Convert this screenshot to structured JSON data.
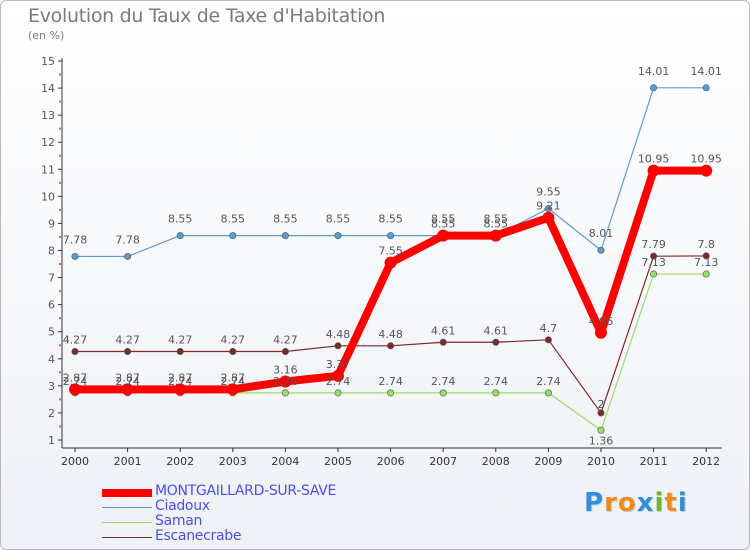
{
  "header": {
    "title": "Evolution du Taux de Taxe d'Habitation",
    "subtitle": "(en %)"
  },
  "logo": {
    "text": "Proxiti",
    "letters": [
      "P",
      "r",
      "o",
      "x",
      "i",
      "t",
      "i"
    ],
    "colors": [
      "#2f8fd8",
      "#f08a1c",
      "#f08a1c",
      "#2f8fd8",
      "#69b830",
      "#f08a1c",
      "#2f8fd8"
    ]
  },
  "chart_data": {
    "type": "line",
    "x": [
      "2000",
      "2001",
      "2002",
      "2003",
      "2004",
      "2005",
      "2006",
      "2007",
      "2008",
      "2009",
      "2010",
      "2011",
      "2012"
    ],
    "ylim": [
      1,
      15
    ],
    "yticks": [
      "1",
      "2",
      "3",
      "4",
      "5",
      "6",
      "7",
      "8",
      "9",
      "10",
      "11",
      "12",
      "13",
      "14",
      "15"
    ],
    "grid": false,
    "legend_position": "bottom-left",
    "series": [
      {
        "name": "MONTGAILLARD-SUR-SAVE",
        "color": "#ff0000",
        "values": [
          2.87,
          2.87,
          2.87,
          2.87,
          3.16,
          3.37,
          7.55,
          8.55,
          8.55,
          9.21,
          4.96,
          10.95,
          10.95
        ],
        "labels": [
          "2.87",
          "2.87",
          "2.87",
          "2.87",
          "3.16",
          "3.37",
          "7.55",
          "8.55",
          "8.55",
          "9.21",
          "4.96",
          "10.95",
          "10.95"
        ]
      },
      {
        "name": "Ciadoux",
        "color": "#5b9bd5",
        "values": [
          7.78,
          7.78,
          8.55,
          8.55,
          8.55,
          8.55,
          8.55,
          8.55,
          8.55,
          9.55,
          8.01,
          14.01,
          14.01
        ],
        "labels": [
          "7.78",
          "7.78",
          "8.55",
          "8.55",
          "8.55",
          "8.55",
          "8.55",
          "8.55",
          "8.55",
          "9.55",
          "8.01",
          "14.01",
          "14.01"
        ]
      },
      {
        "name": "Saman",
        "color": "#99dd66",
        "values": [
          2.74,
          2.74,
          2.74,
          2.74,
          2.74,
          2.74,
          2.74,
          2.74,
          2.74,
          2.74,
          1.36,
          7.13,
          7.13
        ],
        "labels": [
          "2.74",
          "2.74",
          "2.74",
          "2.74",
          "2.74",
          "2.74",
          "2.74",
          "2.74",
          "2.74",
          "2.74",
          "1.36",
          "7.13",
          "7.13"
        ]
      },
      {
        "name": "Escanecrabe",
        "color": "#7a2a2a",
        "values": [
          4.27,
          4.27,
          4.27,
          4.27,
          4.27,
          4.48,
          4.48,
          4.61,
          4.61,
          4.7,
          2,
          7.79,
          7.8
        ],
        "labels": [
          "4.27",
          "4.27",
          "4.27",
          "4.27",
          "4.27",
          "4.48",
          "4.48",
          "4.61",
          "4.61",
          "4.7",
          "2",
          "7.79",
          "7.8"
        ]
      }
    ]
  }
}
